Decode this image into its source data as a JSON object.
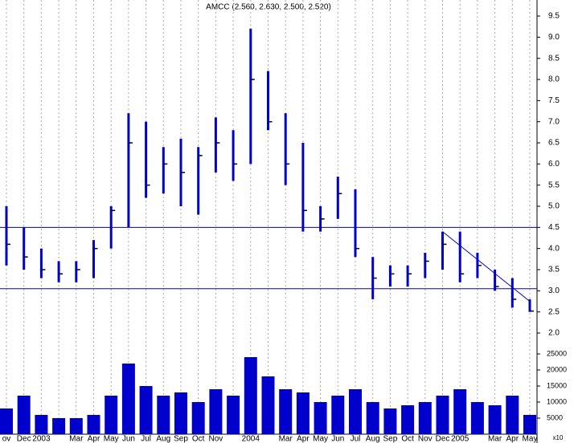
{
  "chart_data": {
    "type": "ohlc",
    "title": "AMCC (2.560, 2.630, 2.500, 2.520)",
    "categories": [
      "ov",
      "Dec",
      "2003",
      null,
      "Mar",
      "Apr",
      "May",
      "Jun",
      "Jul",
      "Aug",
      "Sep",
      "Oct",
      "Nov",
      null,
      "2004",
      null,
      "Mar",
      "Apr",
      "May",
      "Jun",
      "Jul",
      "Aug",
      "Sep",
      "Oct",
      "Nov",
      "Dec",
      "2005",
      null,
      "Mar",
      "Apr",
      "May"
    ],
    "high": [
      5.0,
      4.5,
      4.0,
      3.7,
      3.7,
      4.2,
      5.0,
      7.2,
      7.0,
      6.4,
      6.6,
      6.4,
      7.1,
      6.8,
      9.2,
      8.2,
      7.2,
      6.5,
      5.0,
      5.7,
      5.4,
      3.8,
      3.6,
      3.6,
      3.9,
      4.4,
      4.4,
      3.9,
      3.5,
      3.3,
      2.8
    ],
    "low": [
      3.6,
      3.5,
      3.3,
      3.2,
      3.2,
      3.3,
      4.0,
      4.5,
      5.2,
      5.3,
      5.0,
      4.8,
      5.8,
      5.6,
      6.0,
      6.8,
      5.5,
      4.4,
      4.4,
      4.7,
      3.8,
      2.8,
      3.1,
      3.1,
      3.3,
      3.5,
      3.2,
      3.3,
      3.0,
      2.6,
      2.5
    ],
    "close": [
      4.1,
      3.8,
      3.5,
      3.4,
      3.5,
      4.0,
      4.9,
      6.5,
      5.5,
      6.0,
      5.8,
      6.2,
      6.5,
      6.0,
      8.0,
      7.0,
      6.0,
      4.9,
      4.7,
      5.3,
      4.0,
      3.3,
      3.4,
      3.4,
      3.7,
      4.1,
      3.4,
      3.6,
      3.1,
      2.8,
      2.52
    ],
    "color": "#0000cc",
    "ylim": [
      2.0,
      9.5
    ],
    "yticks": [
      {
        "value": 2.0,
        "label": "2.0"
      },
      {
        "value": 2.5,
        "label": "2.5"
      },
      {
        "value": 3.0,
        "label": "3.0"
      },
      {
        "value": 3.5,
        "label": "3.5"
      },
      {
        "value": 4.0,
        "label": "4.0"
      },
      {
        "value": 4.5,
        "label": "4.5"
      },
      {
        "value": 5.0,
        "label": "5.0"
      },
      {
        "value": 5.5,
        "label": "5.5"
      },
      {
        "value": 6.0,
        "label": "6.0"
      },
      {
        "value": 6.5,
        "label": "6.5"
      },
      {
        "value": 7.0,
        "label": "7.0"
      },
      {
        "value": 7.5,
        "label": "7.5"
      },
      {
        "value": 8.0,
        "label": "8.0"
      },
      {
        "value": 8.5,
        "label": "8.5"
      },
      {
        "value": 9.0,
        "label": "9.0"
      },
      {
        "value": 9.5,
        "label": "9.5"
      }
    ],
    "hlines": [
      4.5,
      3.05
    ],
    "trendline": {
      "from": [
        25,
        4.4
      ],
      "to": [
        30,
        2.75
      ]
    },
    "volume": [
      8000,
      12000,
      6000,
      5000,
      5000,
      6000,
      12000,
      22000,
      15000,
      12000,
      13000,
      10000,
      14000,
      12000,
      24000,
      18000,
      14000,
      13000,
      10000,
      12000,
      14000,
      10000,
      8000,
      9000,
      10000,
      12000,
      14000,
      10000,
      9000,
      12000,
      6000
    ],
    "volume_lim": [
      0,
      25000
    ],
    "volume_ticks": [
      5000,
      10000,
      15000,
      20000,
      25000
    ],
    "volume_unit_label": "x10",
    "grid": true
  }
}
